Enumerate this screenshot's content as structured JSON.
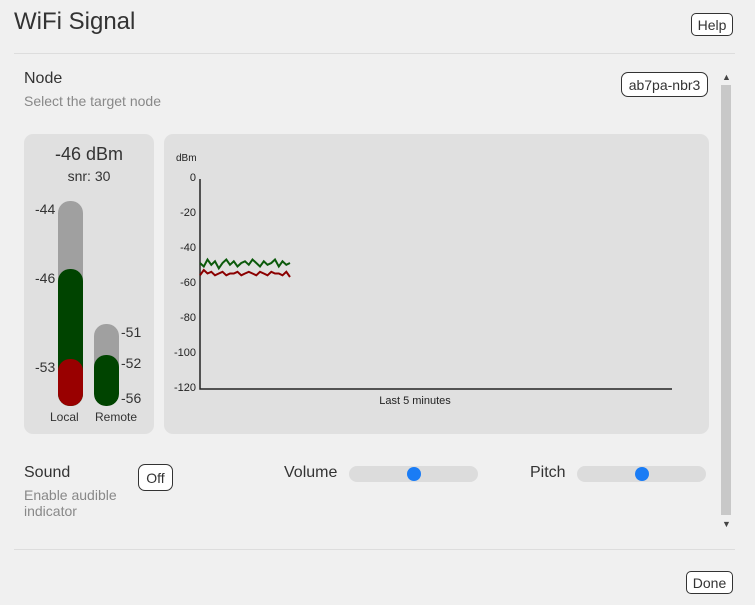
{
  "header": {
    "title": "WiFi Signal",
    "help_label": "Help"
  },
  "node": {
    "label": "Node",
    "description": "Select the target node",
    "value": "ab7pa-nbr3"
  },
  "meter": {
    "dbm": "-46 dBm",
    "snr": "snr: 30",
    "local": {
      "label": "Local",
      "ticks": [
        "-44",
        "-46",
        "-53"
      ]
    },
    "remote": {
      "label": "Remote",
      "ticks": [
        "-51",
        "-52",
        "-56"
      ]
    }
  },
  "chart_data": {
    "type": "line",
    "ylabel": "dBm",
    "xlabel": "Last 5 minutes",
    "ylim": [
      -120,
      0
    ],
    "yticks": [
      "0",
      "-20",
      "-40",
      "-60",
      "-80",
      "-100",
      "-120"
    ],
    "series": [
      {
        "color": "#0b5a0b",
        "values": [
          -48,
          -50,
          -46,
          -49,
          -47,
          -51,
          -48,
          -46,
          -49,
          -47,
          -50,
          -48,
          -47,
          -49,
          -46,
          -48,
          -50,
          -47,
          -49,
          -48,
          -46,
          -50,
          -47,
          -49,
          -48
        ]
      },
      {
        "color": "#8b0000",
        "values": [
          -55,
          -52,
          -54,
          -53,
          -55,
          -54,
          -53,
          -55,
          -54,
          -54,
          -53,
          -55,
          -54,
          -53,
          -54,
          -55,
          -53,
          -54,
          -55,
          -53,
          -54,
          -54,
          -55,
          -53,
          -56
        ]
      }
    ]
  },
  "sound": {
    "label": "Sound",
    "description_line1": "Enable audible",
    "description_line2": "indicator",
    "toggle_label": "Off",
    "volume_label": "Volume",
    "volume_value": 0.5,
    "pitch_label": "Pitch",
    "pitch_value": 0.5
  },
  "footer": {
    "done_label": "Done"
  },
  "colors": {
    "green": "#004400",
    "red": "#990000",
    "meter_gray": "#a0a0a0",
    "accent": "#1a7cf5"
  }
}
